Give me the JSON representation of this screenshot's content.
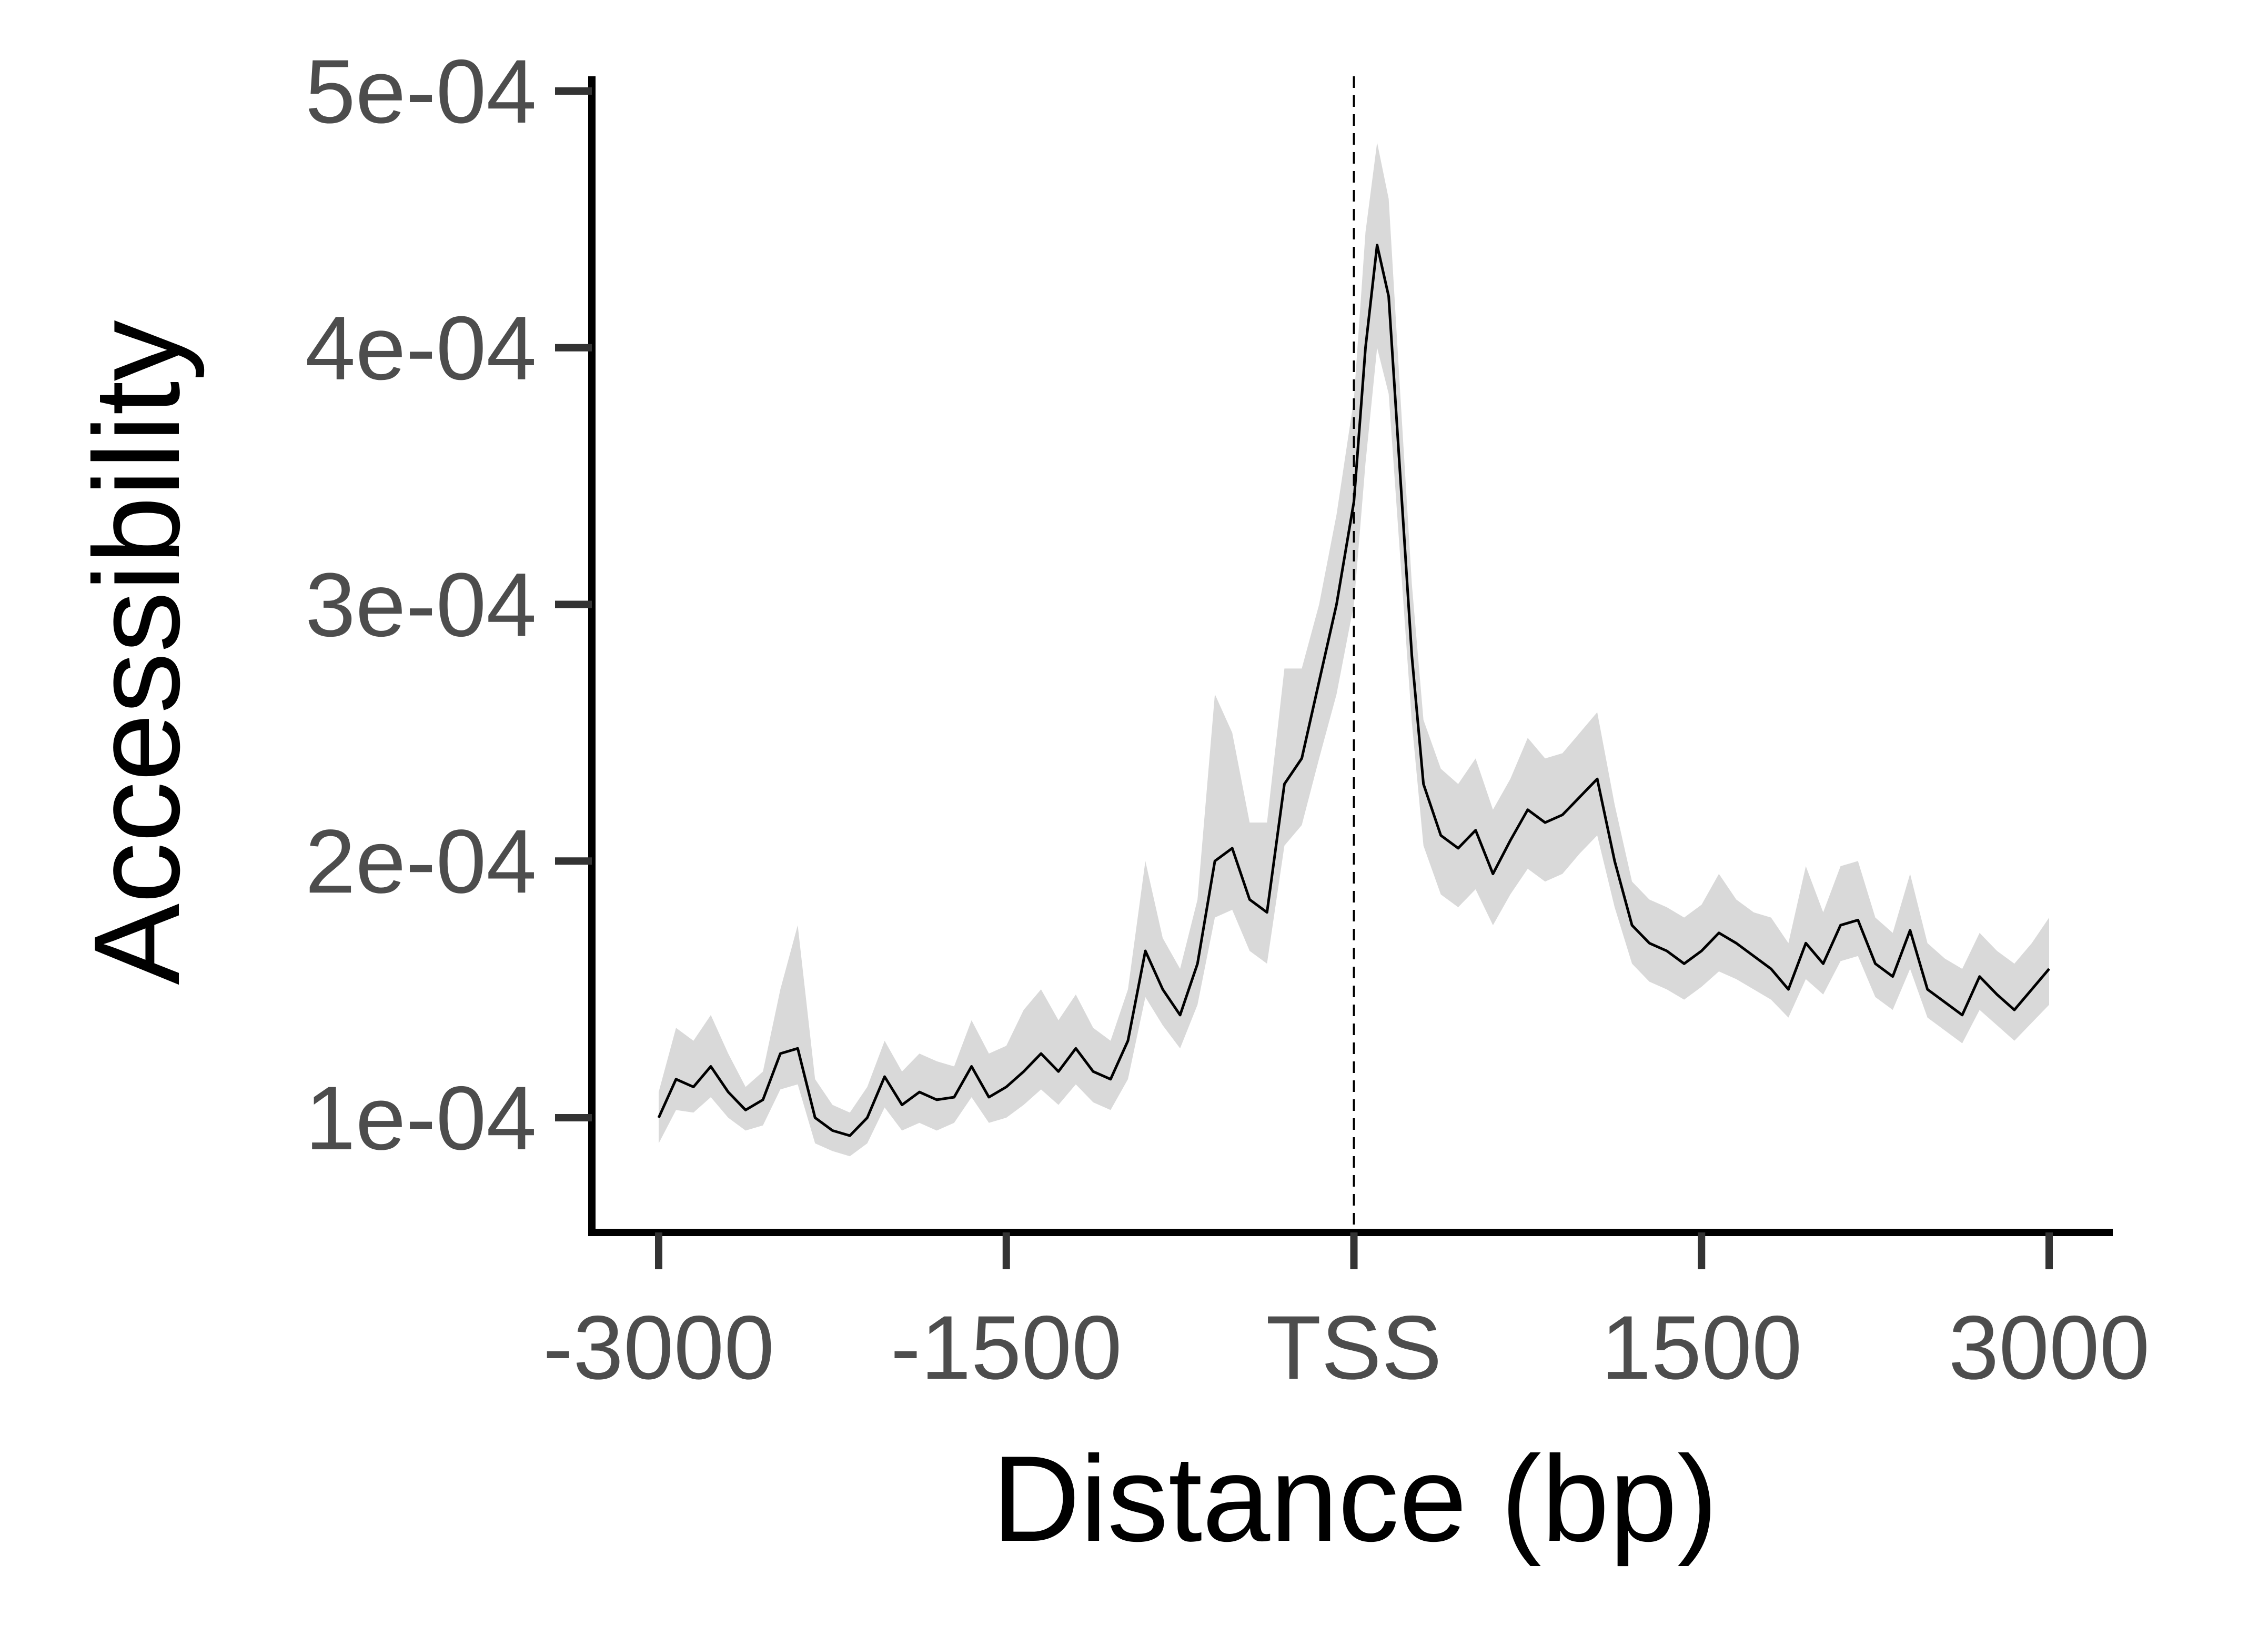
{
  "chart_data": {
    "type": "line",
    "title": "",
    "xlabel": "Distance (bp)",
    "ylabel": "Accessibility",
    "xlim": [
      -3000,
      3000
    ],
    "ylim": [
      5.5e-05,
      0.0005
    ],
    "grid": false,
    "legend": "none",
    "x_ticks": [
      {
        "value": -3000,
        "label": "-3000"
      },
      {
        "value": -1500,
        "label": "-1500"
      },
      {
        "value": 0,
        "label": "TSS"
      },
      {
        "value": 1500,
        "label": "1500"
      },
      {
        "value": 3000,
        "label": "3000"
      }
    ],
    "y_ticks": [
      {
        "value": 0.0001,
        "label": "1e-04"
      },
      {
        "value": 0.0002,
        "label": "2e-04"
      },
      {
        "value": 0.0003,
        "label": "3e-04"
      },
      {
        "value": 0.0004,
        "label": "4e-04"
      },
      {
        "value": 0.0005,
        "label": "5e-04"
      }
    ],
    "reference_line": {
      "x": 0,
      "style": "dashed"
    },
    "colors": {
      "line": "#000000",
      "ribbon": "#d9d9d9",
      "axis": "#000000",
      "tick_label": "#4d4d4d"
    },
    "series": [
      {
        "x": [
          -3000,
          -2925,
          -2850,
          -2775,
          -2700,
          -2625,
          -2550,
          -2475,
          -2400,
          -2325,
          -2250,
          -2175,
          -2100,
          -2025,
          -1950,
          -1875,
          -1800,
          -1725,
          -1650,
          -1575,
          -1500,
          -1425,
          -1350,
          -1275,
          -1200,
          -1125,
          -1050,
          -975,
          -900,
          -825,
          -750,
          -675,
          -600,
          -525,
          -450,
          -375,
          -300,
          -225,
          -150,
          -75,
          0,
          50,
          100,
          150,
          200,
          250,
          300,
          375,
          450,
          525,
          600,
          675,
          750,
          825,
          900,
          975,
          1050,
          1125,
          1200,
          1275,
          1350,
          1425,
          1500,
          1575,
          1650,
          1725,
          1800,
          1875,
          1950,
          2025,
          2100,
          2175,
          2250,
          2325,
          2400,
          2475,
          2550,
          2625,
          2700,
          2775,
          2850,
          2925,
          3000
        ],
        "y": [
          0.0001,
          0.000115,
          0.000112,
          0.00012,
          0.00011,
          0.000103,
          0.000107,
          0.000125,
          0.000127,
          0.0001,
          9.5e-05,
          9.3e-05,
          0.0001,
          0.000116,
          0.000105,
          0.00011,
          0.000107,
          0.000108,
          0.00012,
          0.000108,
          0.000112,
          0.000118,
          0.000125,
          0.000118,
          0.000127,
          0.000118,
          0.000115,
          0.00013,
          0.000165,
          0.00015,
          0.00014,
          0.00016,
          0.0002,
          0.000205,
          0.000185,
          0.00018,
          0.00023,
          0.00024,
          0.00027,
          0.0003,
          0.00034,
          0.0004,
          0.00044,
          0.00042,
          0.00035,
          0.00028,
          0.00023,
          0.00021,
          0.000205,
          0.000212,
          0.000195,
          0.000208,
          0.00022,
          0.000215,
          0.000218,
          0.000225,
          0.000232,
          0.0002,
          0.000175,
          0.000168,
          0.000165,
          0.00016,
          0.000165,
          0.000172,
          0.000168,
          0.000163,
          0.000158,
          0.00015,
          0.000168,
          0.00016,
          0.000175,
          0.000177,
          0.00016,
          0.000155,
          0.000173,
          0.00015,
          0.000145,
          0.00014,
          0.000155,
          0.000148,
          0.000142,
          0.00015,
          0.000158
        ],
        "lower": [
          9e-05,
          0.000103,
          0.000102,
          0.000108,
          0.0001,
          9.5e-05,
          9.7e-05,
          0.000111,
          0.000113,
          9e-05,
          8.7e-05,
          8.5e-05,
          9e-05,
          0.000104,
          9.5e-05,
          9.8e-05,
          9.5e-05,
          9.8e-05,
          0.000108,
          9.8e-05,
          0.0001,
          0.000105,
          0.000111,
          0.000105,
          0.000113,
          0.000106,
          0.000103,
          0.000115,
          0.000147,
          0.000136,
          0.000127,
          0.000144,
          0.000178,
          0.000181,
          0.000165,
          0.00016,
          0.000206,
          0.000214,
          0.00024,
          0.000265,
          0.0003,
          0.000355,
          0.0004,
          0.000382,
          0.000318,
          0.000254,
          0.000206,
          0.000187,
          0.000182,
          0.000189,
          0.000175,
          0.000187,
          0.000197,
          0.000192,
          0.000195,
          0.000203,
          0.00021,
          0.000182,
          0.00016,
          0.000153,
          0.00015,
          0.000146,
          0.000151,
          0.000157,
          0.000154,
          0.00015,
          0.000146,
          0.000139,
          0.000154,
          0.000148,
          0.000161,
          0.000163,
          0.000147,
          0.000142,
          0.000158,
          0.000139,
          0.000134,
          0.000129,
          0.000142,
          0.000136,
          0.00013,
          0.000137,
          0.000144
        ],
        "upper": [
          0.00011,
          0.000135,
          0.00013,
          0.00014,
          0.000125,
          0.000112,
          0.000118,
          0.00015,
          0.000175,
          0.000115,
          0.000105,
          0.000102,
          0.000112,
          0.00013,
          0.000118,
          0.000125,
          0.000122,
          0.00012,
          0.000138,
          0.000125,
          0.000128,
          0.000142,
          0.00015,
          0.000138,
          0.000148,
          0.000135,
          0.00013,
          0.00015,
          0.0002,
          0.00017,
          0.000158,
          0.000185,
          0.000265,
          0.00025,
          0.000215,
          0.000215,
          0.000275,
          0.000275,
          0.0003,
          0.000335,
          0.00038,
          0.000445,
          0.00048,
          0.000458,
          0.000382,
          0.000308,
          0.000255,
          0.000236,
          0.00023,
          0.00024,
          0.00022,
          0.000232,
          0.000248,
          0.00024,
          0.000242,
          0.00025,
          0.000258,
          0.000222,
          0.000192,
          0.000185,
          0.000182,
          0.000178,
          0.000183,
          0.000195,
          0.000185,
          0.00018,
          0.000178,
          0.000168,
          0.000198,
          0.00018,
          0.000198,
          0.0002,
          0.000178,
          0.000172,
          0.000195,
          0.000168,
          0.000162,
          0.000158,
          0.000172,
          0.000165,
          0.00016,
          0.000168,
          0.000178
        ]
      }
    ]
  }
}
